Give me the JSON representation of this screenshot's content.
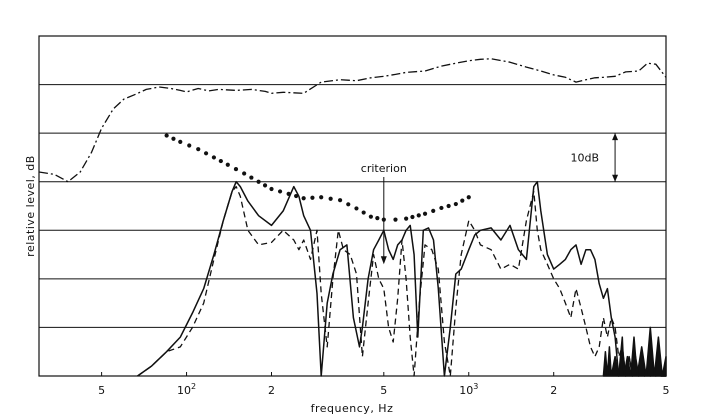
{
  "chart_data": {
    "type": "line",
    "title": "",
    "xlabel": "frequency, Hz",
    "ylabel": "relative level, dB",
    "x_scale": "log",
    "xlim": [
      30,
      5000
    ],
    "ylim": [
      -70,
      0
    ],
    "grid": "horizontal lines every 10 dB",
    "x_ticks": [
      {
        "value": 50,
        "label": "5",
        "exponent": ""
      },
      {
        "value": 100,
        "label": "10",
        "exponent": "2"
      },
      {
        "value": 200,
        "label": "2",
        "exponent": ""
      },
      {
        "value": 500,
        "label": "5",
        "exponent": ""
      },
      {
        "value": 1000,
        "label": "10",
        "exponent": "3"
      },
      {
        "value": 2000,
        "label": "2",
        "exponent": ""
      },
      {
        "value": 5000,
        "label": "5",
        "exponent": ""
      }
    ],
    "y_gridlines": [
      -10,
      -20,
      -30,
      -40,
      -50,
      -60
    ],
    "annotations": {
      "criterion": {
        "label": "criterion",
        "x": 500,
        "y": -47
      },
      "scale_bar": {
        "label": "10dB",
        "x": 3300,
        "y_top": -20,
        "y_bottom": -30
      }
    },
    "series": [
      {
        "style": "dash-dot",
        "x": [
          30,
          34,
          38,
          42,
          46,
          50,
          55,
          60,
          66,
          72,
          80,
          88,
          95,
          100,
          110,
          120,
          130,
          150,
          170,
          190,
          200,
          220,
          260,
          300,
          350,
          400,
          450,
          500,
          550,
          600,
          700,
          800,
          900,
          1000,
          1100,
          1200,
          1400,
          1600,
          1800,
          2000,
          2200,
          2400,
          2600,
          2800,
          3000,
          3300,
          3600,
          4000,
          4300,
          4600,
          5000
        ],
        "y": [
          -28,
          -28.5,
          -30,
          -28,
          -24,
          -19,
          -15,
          -13,
          -12,
          -11,
          -10.5,
          -10.8,
          -11.2,
          -11.5,
          -10.8,
          -11.3,
          -11,
          -11.2,
          -11,
          -11.4,
          -11.8,
          -11.6,
          -11.8,
          -9.5,
          -9,
          -9.2,
          -8.6,
          -8.3,
          -7.9,
          -7.5,
          -7.2,
          -6.2,
          -5.6,
          -5.1,
          -4.8,
          -4.7,
          -5.4,
          -6.4,
          -7.2,
          -8,
          -8.5,
          -9.5,
          -9,
          -8.6,
          -8.5,
          -8.3,
          -7.4,
          -7.2,
          -5.6,
          -5.8,
          -8.5
        ]
      },
      {
        "style": "dotted",
        "x": [
          85,
          95,
          110,
          125,
          140,
          160,
          180,
          200,
          230,
          260,
          300,
          350,
          400,
          450,
          500,
          550,
          600,
          700,
          800,
          900,
          1000
        ],
        "y": [
          -20.5,
          -21.8,
          -23.3,
          -25,
          -26.5,
          -28.3,
          -30,
          -31.5,
          -32.5,
          -33.4,
          -33.2,
          -33.8,
          -35.5,
          -37.2,
          -37.8,
          -37.8,
          -37.6,
          -36.6,
          -35.4,
          -34.6,
          -33.2
        ]
      },
      {
        "style": "solid",
        "x": [
          67,
          75,
          85,
          95,
          105,
          115,
          125,
          135,
          145,
          150,
          155,
          165,
          180,
          200,
          220,
          240,
          250,
          260,
          275,
          290,
          300,
          315,
          330,
          350,
          370,
          390,
          410,
          420,
          440,
          460,
          480,
          500,
          520,
          540,
          560,
          580,
          600,
          620,
          640,
          660,
          690,
          720,
          750,
          780,
          820,
          860,
          900,
          940,
          1000,
          1050,
          1100,
          1200,
          1300,
          1400,
          1500,
          1600,
          1700,
          1750,
          1800,
          1900,
          2000,
          2100,
          2200,
          2300,
          2400,
          2500,
          2600,
          2700,
          2800,
          2900,
          3000,
          3100,
          3200,
          3300,
          3400,
          3500,
          3600,
          3700,
          3800,
          3900,
          4000,
          4100,
          4200,
          4300,
          4400,
          4500,
          4600,
          4700,
          4800,
          4900,
          5000
        ],
        "y": [
          -70,
          -68,
          -65,
          -62,
          -57,
          -52,
          -45,
          -38,
          -32,
          -30,
          -31,
          -34,
          -37,
          -39,
          -36,
          -31,
          -33,
          -37,
          -40,
          -53,
          -70,
          -55,
          -49,
          -44,
          -43,
          -58,
          -64,
          -60,
          -50,
          -44,
          -42,
          -40,
          -44,
          -46,
          -43,
          -42,
          -40,
          -39,
          -45,
          -62,
          -40,
          -39.5,
          -42,
          -52,
          -70,
          -60,
          -49,
          -48,
          -44,
          -41,
          -40,
          -39.5,
          -42,
          -39,
          -44,
          -46,
          -31,
          -30,
          -36,
          -45,
          -48,
          -47,
          -46,
          -44,
          -43,
          -47,
          -44,
          -44,
          -46,
          -51,
          -54,
          -52,
          -58,
          -62,
          -70,
          -64,
          -70,
          -66,
          -70,
          -66,
          -70,
          -67,
          -70,
          -69,
          -70,
          -68,
          -70,
          -67,
          -70,
          -70,
          -70
        ]
      },
      {
        "style": "dashed",
        "x": [
          67,
          75,
          85,
          95,
          105,
          115,
          125,
          135,
          145,
          150,
          155,
          165,
          180,
          200,
          220,
          240,
          250,
          260,
          275,
          290,
          300,
          315,
          330,
          345,
          360,
          380,
          400,
          420,
          440,
          460,
          480,
          500,
          520,
          540,
          560,
          580,
          600,
          620,
          640,
          670,
          700,
          740,
          780,
          820,
          860,
          900,
          940,
          1000,
          1050,
          1100,
          1200,
          1300,
          1400,
          1500,
          1600,
          1700,
          1750,
          1800,
          1900,
          2000,
          2100,
          2200,
          2300,
          2400,
          2500,
          2600,
          2700,
          2800,
          2900,
          3000,
          3100,
          3200,
          3300,
          3400,
          3500,
          3600,
          3700,
          3800,
          3900,
          4000,
          4100,
          4200,
          4300,
          4400,
          4500,
          4600,
          4700,
          4800,
          4900,
          5000
        ],
        "y": [
          -70,
          -68,
          -65,
          -64,
          -60,
          -55,
          -46,
          -38,
          -32,
          -31,
          -33,
          -40,
          -43,
          -42.5,
          -40,
          -42,
          -44,
          -42,
          -46,
          -40,
          -53,
          -64,
          -50,
          -40,
          -44,
          -45,
          -49,
          -66,
          -55,
          -45,
          -50,
          -52,
          -60,
          -63,
          -54,
          -42,
          -50,
          -62,
          -70,
          -54,
          -43,
          -44,
          -48,
          -63,
          -70,
          -56,
          -45,
          -38,
          -40,
          -43,
          -44,
          -48,
          -47,
          -48,
          -38,
          -32,
          -40,
          -44,
          -47,
          -50,
          -52,
          -55,
          -58,
          -52,
          -56,
          -60,
          -64,
          -66,
          -64,
          -58,
          -62,
          -58,
          -60,
          -66,
          -64,
          -70,
          -66,
          -70,
          -67,
          -70,
          -68,
          -70,
          -68,
          -70,
          -69,
          -70,
          -69,
          -70,
          -70,
          -70
        ]
      },
      {
        "style": "solid-fill",
        "x": [
          3000,
          3050,
          3100,
          3150,
          3200,
          3300,
          3400,
          3500,
          3550,
          3650,
          3750,
          3850,
          3950,
          4100,
          4250,
          4400,
          4550,
          4700,
          4850,
          5000
        ],
        "y": [
          -70,
          -65,
          -70,
          -64,
          -70,
          -66,
          -70,
          -62,
          -70,
          -66,
          -70,
          -62,
          -70,
          -64,
          -70,
          -60,
          -70,
          -62,
          -70,
          -66
        ]
      }
    ]
  }
}
